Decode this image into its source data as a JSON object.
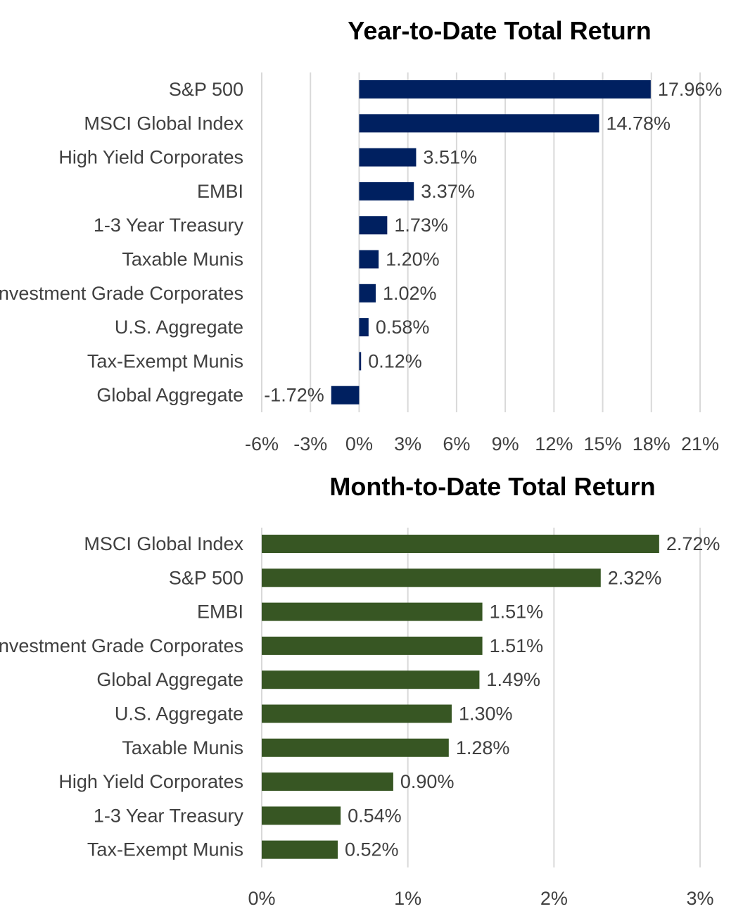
{
  "chart_data": [
    {
      "type": "bar",
      "orientation": "horizontal",
      "title": "Year-to-Date Total Return",
      "categories": [
        "S&P 500",
        "MSCI Global Index",
        "High Yield Corporates",
        "EMBI",
        "1-3 Year Treasury",
        "Taxable Munis",
        "Investment Grade Corporates",
        "U.S. Aggregate",
        "Tax-Exempt Munis",
        "Global Aggregate"
      ],
      "values": [
        17.96,
        14.78,
        3.51,
        3.37,
        1.73,
        1.2,
        1.02,
        0.58,
        0.12,
        -1.72
      ],
      "value_labels": [
        "17.96%",
        "14.78%",
        "3.51%",
        "3.37%",
        "1.73%",
        "1.20%",
        "1.02%",
        "0.58%",
        "0.12%",
        "-1.72%"
      ],
      "xlim": [
        -6,
        21
      ],
      "ticks": [
        -6,
        -3,
        0,
        3,
        6,
        9,
        12,
        15,
        18,
        21
      ],
      "tick_labels": [
        "-6%",
        "-3%",
        "0%",
        "3%",
        "6%",
        "9%",
        "12%",
        "15%",
        "18%",
        "21%"
      ],
      "xlabel": "",
      "ylabel": "",
      "grid": true,
      "color": "#002060"
    },
    {
      "type": "bar",
      "orientation": "horizontal",
      "title": "Month-to-Date Total Return",
      "categories": [
        "MSCI Global Index",
        "S&P 500",
        "EMBI",
        "Investment Grade Corporates",
        "Global Aggregate",
        "U.S. Aggregate",
        "Taxable Munis",
        "High Yield Corporates",
        "1-3 Year Treasury",
        "Tax-Exempt Munis"
      ],
      "values": [
        2.72,
        2.32,
        1.51,
        1.51,
        1.49,
        1.3,
        1.28,
        0.9,
        0.54,
        0.52
      ],
      "value_labels": [
        "2.72%",
        "2.32%",
        "1.51%",
        "1.51%",
        "1.49%",
        "1.30%",
        "1.28%",
        "0.90%",
        "0.54%",
        "0.52%"
      ],
      "xlim": [
        0,
        3
      ],
      "ticks": [
        0,
        1,
        2,
        3
      ],
      "tick_labels": [
        "0%",
        "1%",
        "2%",
        "3%"
      ],
      "xlabel": "",
      "ylabel": "",
      "grid": true,
      "color": "#375623"
    }
  ]
}
